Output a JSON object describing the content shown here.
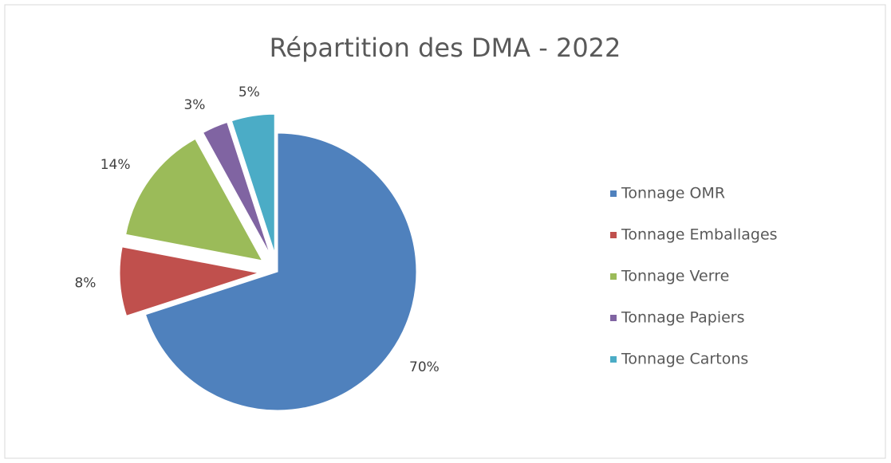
{
  "chart_data": {
    "type": "pie",
    "title": "Répartition des DMA - 2022",
    "categories": [
      "Tonnage OMR",
      "Tonnage Emballages",
      "Tonnage Verre",
      "Tonnage Papiers",
      "Tonnage Cartons"
    ],
    "values": [
      70,
      8,
      14,
      3,
      5
    ],
    "value_labels": [
      "70%",
      "8%",
      "14%",
      "3%",
      "5%"
    ],
    "colors": [
      "#4f81bd",
      "#c0504d",
      "#9bbb59",
      "#8064a2",
      "#4bacc6"
    ],
    "legend": "right"
  }
}
